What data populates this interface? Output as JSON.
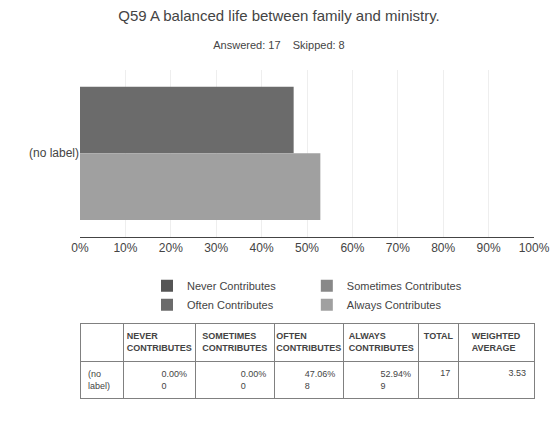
{
  "chart_data": {
    "type": "bar",
    "orientation": "horizontal",
    "title": "Q59 A balanced life between family and ministry.",
    "subtitle": "Answered: 17    Skipped: 8",
    "categories": [
      "(no label)"
    ],
    "series": [
      {
        "name": "Never Contributes",
        "color": "#555555",
        "values": [
          null
        ]
      },
      {
        "name": "Sometimes Contributes",
        "color": "#888888",
        "values": [
          null
        ]
      },
      {
        "name": "Often Contributes",
        "color": "#6b6b6b",
        "values": [
          47.06
        ]
      },
      {
        "name": "Always Contributes",
        "color": "#a0a0a0",
        "values": [
          52.94
        ]
      }
    ],
    "xlim": [
      0,
      100
    ],
    "xticks": [
      {
        "value": 0,
        "label": "0%"
      },
      {
        "value": 10,
        "label": "10%"
      },
      {
        "value": 20,
        "label": "20%"
      },
      {
        "value": 30,
        "label": "30%"
      },
      {
        "value": 40,
        "label": "40%"
      },
      {
        "value": 50,
        "label": "50%"
      },
      {
        "value": 60,
        "label": "60%"
      },
      {
        "value": 70,
        "label": "70%"
      },
      {
        "value": 80,
        "label": "80%"
      },
      {
        "value": 90,
        "label": "90%"
      },
      {
        "value": 100,
        "label": "100%"
      }
    ],
    "grid": true,
    "table": {
      "headers": [
        null,
        "NEVER\nCONTRIBUTES",
        "SOMETIMES\nCONTRIBUTES",
        "OFTEN\nCONTRIBUTES",
        "ALWAYS\nCONTRIBUTES",
        "TOTAL",
        "WEIGHTED\nAVERAGE"
      ],
      "row_label": "(no\nlabel)",
      "cells": [
        [
          "0.00%",
          "0"
        ],
        [
          "0.00%",
          "0"
        ],
        [
          "47.06%",
          "8"
        ],
        [
          "52.94%",
          "9"
        ],
        [
          "17"
        ],
        [
          "3.53"
        ]
      ]
    }
  }
}
